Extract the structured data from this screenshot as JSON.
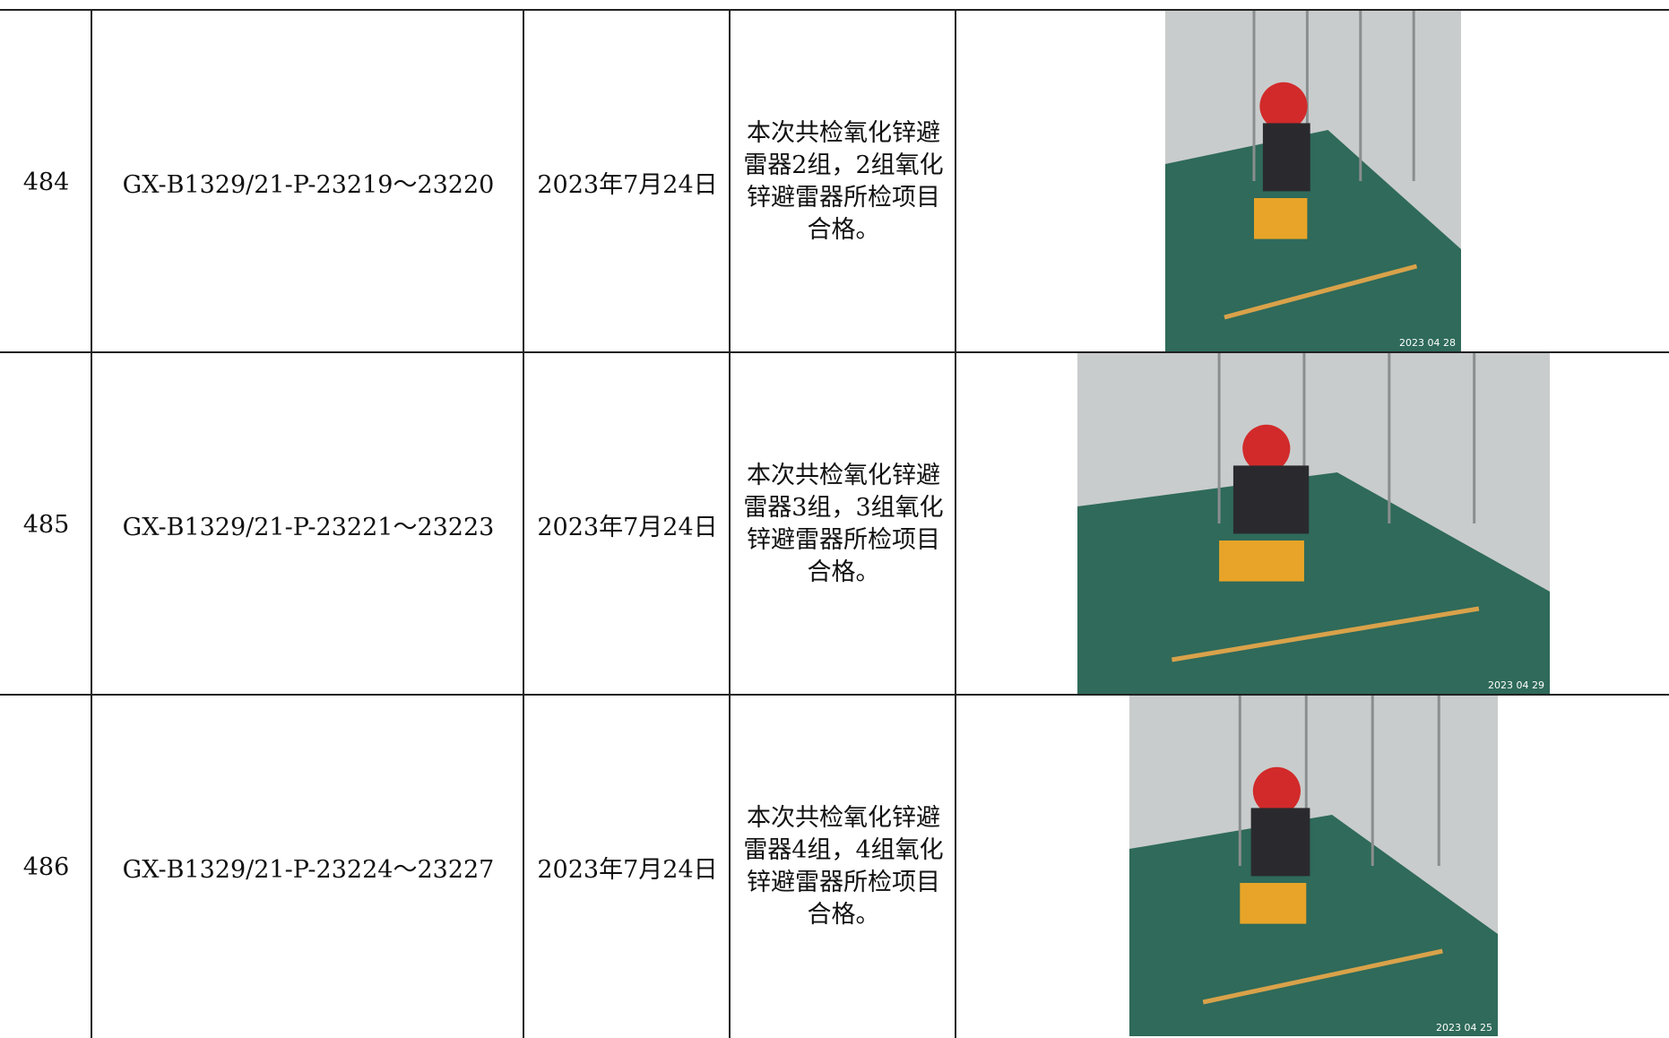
{
  "table": {
    "rows": [
      {
        "no": "484",
        "code": "GX-B1329/21-P-23219～23220",
        "date": "2023年7月24日",
        "result": "本次共检氧化锌避雷器2组，2组氧化锌避雷器所检项目合格。",
        "photo_stamp": "2023 04 28"
      },
      {
        "no": "485",
        "code": "GX-B1329/21-P-23221～23223",
        "date": "2023年7月24日",
        "result": "本次共检氧化锌避雷器3组，3组氧化锌避雷器所检项目合格。",
        "photo_stamp": "2023 04 29"
      },
      {
        "no": "486",
        "code": "GX-B1329/21-P-23224～23227",
        "date": "2023年7月24日",
        "result": "本次共检氧化锌避雷器4组，4组氧化锌避雷器所检项目合格。",
        "photo_stamp": "2023 04 25"
      }
    ]
  }
}
